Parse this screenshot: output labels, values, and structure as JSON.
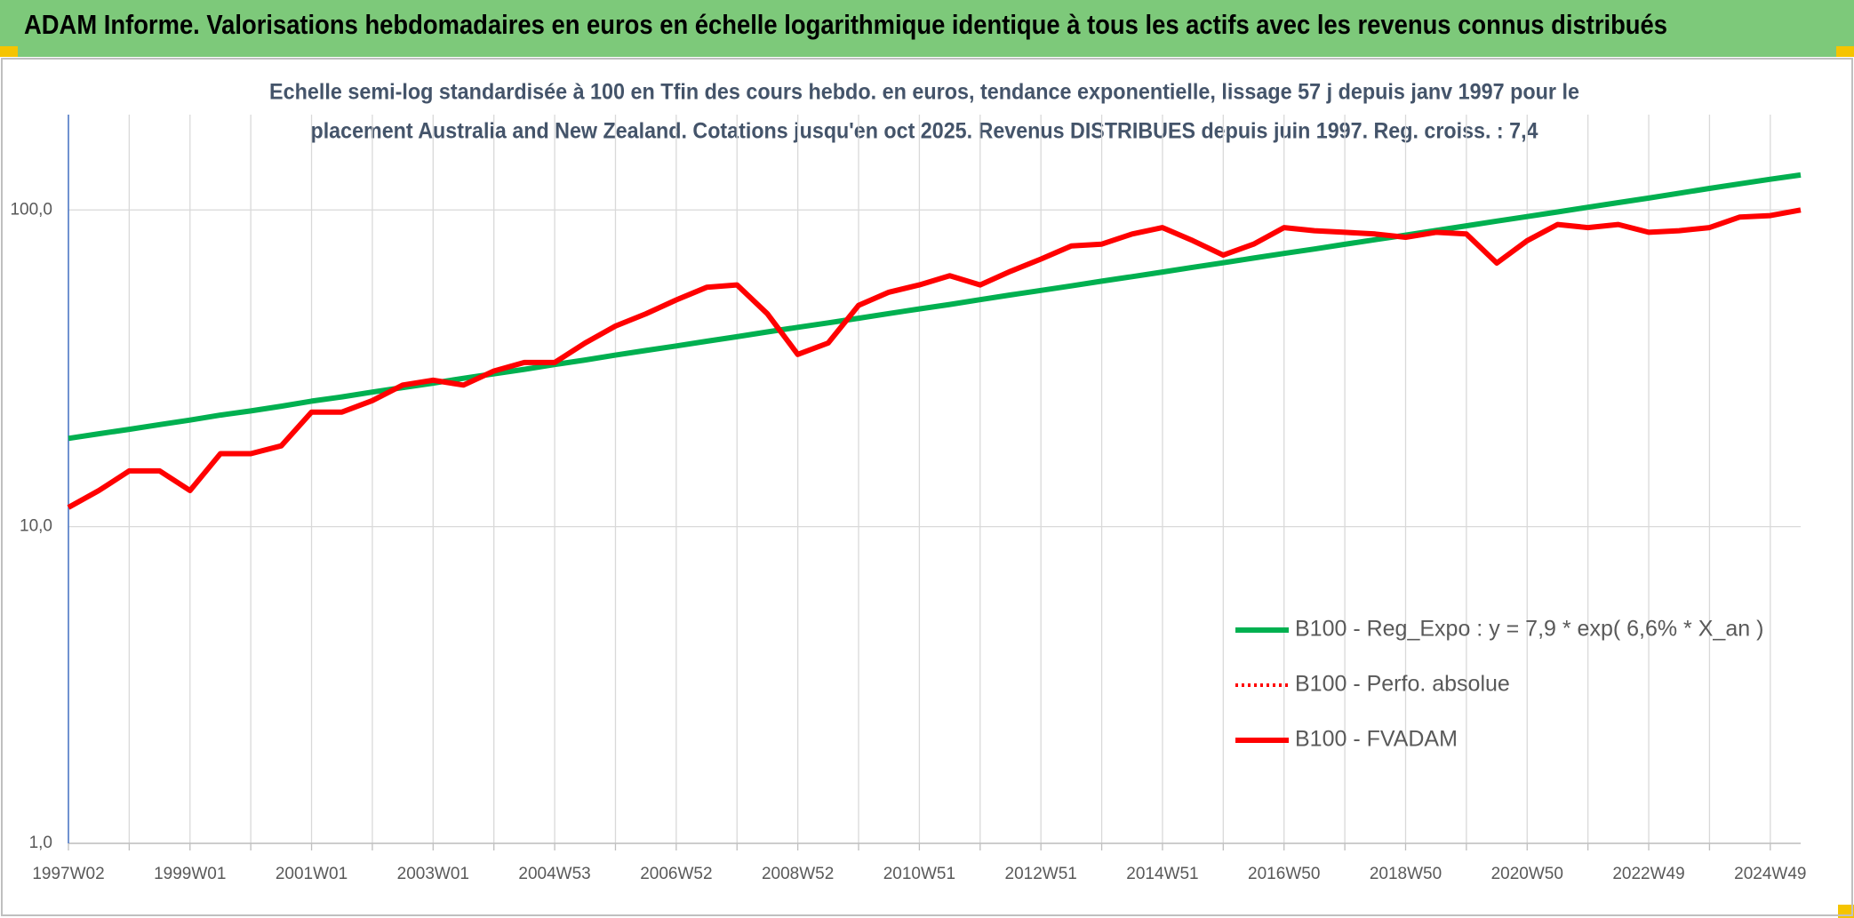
{
  "chart_data": {
    "type": "line",
    "title": "ADAM Informe. Valorisations hebdomadaires en euros en échelle logarithmique identique à tous les actifs avec les revenus connus distribués",
    "subtitle": [
      "Echelle semi-log standardisée à 100 en Tfin des cours hebdo. en euros, tendance exponentielle, lissage 57 j depuis janv 1997 pour le",
      "placement Australia and New Zealand. Cotations jusqu'en oct 2025. Revenus DISTRIBUES depuis juin 1997. Reg. croiss. : 7,4"
    ],
    "categories": [
      "1997W02",
      null,
      null,
      null,
      "1999W01",
      null,
      null,
      null,
      "2001W01",
      null,
      null,
      null,
      "2003W01",
      null,
      null,
      null,
      "2004W53",
      null,
      null,
      null,
      "2006W52",
      null,
      null,
      null,
      "2008W52",
      null,
      null,
      null,
      "2010W51",
      null,
      null,
      null,
      "2012W51",
      null,
      null,
      null,
      "2014W51",
      null,
      null,
      null,
      "2016W50",
      null,
      null,
      null,
      "2018W50",
      null,
      null,
      null,
      "2020W50",
      null,
      null,
      null,
      "2022W49",
      null,
      null,
      null,
      "2024W49",
      null
    ],
    "log_scale": true,
    "grid": true,
    "legend_position": "right",
    "ylim": [
      1,
      200
    ],
    "yticks": [
      {
        "value": 1,
        "label": "1,0"
      },
      {
        "value": 10,
        "label": "10,0"
      },
      {
        "value": 100,
        "label": "100,0"
      }
    ],
    "series": [
      {
        "name": "B100 - Reg_Expo : y = 7,9 * exp( 6,6% *  X_an )",
        "color": "#00b050",
        "style": "solid",
        "values": [
          19.0,
          19.65,
          20.3,
          21.0,
          21.7,
          22.5,
          23.2,
          24.0,
          24.9,
          25.7,
          26.6,
          27.5,
          28.4,
          29.4,
          30.4,
          31.4,
          32.5,
          33.6,
          34.8,
          36.0,
          37.2,
          38.5,
          39.8,
          41.2,
          42.6,
          44.0,
          45.5,
          47.1,
          48.7,
          50.3,
          52.1,
          53.9,
          55.7,
          57.6,
          59.6,
          61.6,
          63.7,
          65.9,
          68.1,
          70.5,
          72.9,
          75.3,
          77.9,
          80.6,
          83.3,
          86.2,
          89.1,
          92.2,
          95.3,
          98.6,
          102,
          105.5,
          109,
          113,
          117,
          121,
          125,
          129
        ]
      },
      {
        "name": "B100 - Perfo. absolue",
        "color": "#ff0000",
        "style": "dotted",
        "values": [
          11.5,
          13,
          15,
          15,
          13,
          17,
          17,
          18,
          23,
          23,
          25,
          28,
          29,
          28,
          31,
          33,
          33,
          38,
          43,
          47,
          52,
          57,
          58,
          47,
          35,
          38,
          50,
          55,
          58,
          62,
          58,
          64,
          70,
          77,
          78,
          84,
          88,
          80,
          72,
          78,
          88,
          86,
          85,
          84,
          82,
          85,
          84,
          68,
          80,
          90,
          88,
          90,
          85,
          86,
          88,
          95,
          96,
          100
        ]
      },
      {
        "name": "B100 - FVADAM",
        "color": "#ff0000",
        "style": "solid",
        "values": [
          11.5,
          13,
          15,
          15,
          13,
          17,
          17,
          18,
          23,
          23,
          25,
          28,
          29,
          28,
          31,
          33,
          33,
          38,
          43,
          47,
          52,
          57,
          58,
          47,
          35,
          38,
          50,
          55,
          58,
          62,
          58,
          64,
          70,
          77,
          78,
          84,
          88,
          80,
          72,
          78,
          88,
          86,
          85,
          84,
          82,
          85,
          84,
          68,
          80,
          90,
          88,
          90,
          85,
          86,
          88,
          95,
          96,
          100
        ]
      }
    ]
  }
}
